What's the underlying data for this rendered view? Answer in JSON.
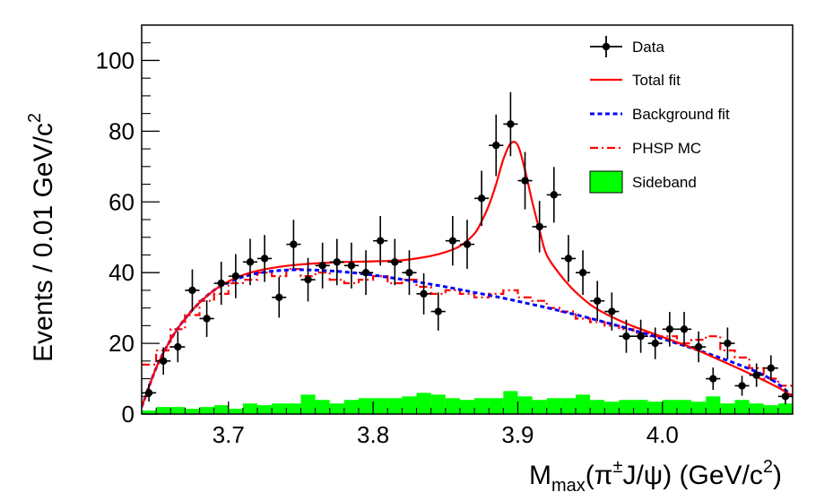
{
  "chart_data": {
    "type": "scatter",
    "title": "",
    "xlabel": {
      "main": "M",
      "sub": "max",
      "paren": "(π",
      "sup": "±",
      "rest": "J/ψ) (GeV/c",
      "sup2": "2",
      "close": ")"
    },
    "ylabel": {
      "main": "Events / 0.01 GeV/c",
      "sup": "2"
    },
    "xlim": [
      3.64,
      4.09
    ],
    "ylim": [
      0,
      110
    ],
    "xticks": [
      3.7,
      3.8,
      3.9,
      4.0
    ],
    "xtick_labels": [
      "3.7",
      "3.8",
      "3.9",
      "4.0"
    ],
    "yticks": [
      0,
      20,
      40,
      60,
      80,
      100
    ],
    "ytick_labels": [
      "0",
      "20",
      "40",
      "60",
      "80",
      "100"
    ],
    "legend": {
      "position": "top-right",
      "entries": [
        {
          "label": "Data",
          "style": "marker"
        },
        {
          "label": "Total fit",
          "style": "solid",
          "color": "#ff0000"
        },
        {
          "label": "Background fit",
          "style": "dashed",
          "color": "#0000ff"
        },
        {
          "label": "PHSP MC",
          "style": "dashdot",
          "color": "#ff0000"
        },
        {
          "label": "Sideband",
          "style": "fill",
          "color": "#00ff00"
        }
      ]
    },
    "series": [
      {
        "name": "Data",
        "type": "errorbar",
        "color": "#000000",
        "x": [
          3.645,
          3.655,
          3.665,
          3.675,
          3.685,
          3.695,
          3.705,
          3.715,
          3.725,
          3.735,
          3.745,
          3.755,
          3.765,
          3.775,
          3.785,
          3.795,
          3.805,
          3.815,
          3.825,
          3.835,
          3.845,
          3.855,
          3.865,
          3.875,
          3.885,
          3.895,
          3.905,
          3.915,
          3.925,
          3.935,
          3.945,
          3.955,
          3.965,
          3.975,
          3.985,
          3.995,
          4.005,
          4.015,
          4.025,
          4.035,
          4.045,
          4.055,
          4.065,
          4.075,
          4.085
        ],
        "y": [
          6,
          15,
          19,
          35,
          27,
          37,
          39,
          43,
          44,
          33,
          48,
          38,
          42,
          43,
          42,
          40,
          49,
          43,
          40,
          34,
          29,
          49,
          48,
          61,
          76,
          82,
          66,
          53,
          62,
          44,
          40,
          32,
          29,
          22,
          22,
          20,
          24,
          24,
          19,
          10,
          20,
          8,
          11,
          13,
          5
        ]
      },
      {
        "name": "Total fit",
        "type": "line",
        "color": "#ff0000",
        "x": [
          3.64,
          3.65,
          3.66,
          3.67,
          3.68,
          3.69,
          3.7,
          3.71,
          3.72,
          3.73,
          3.74,
          3.75,
          3.76,
          3.77,
          3.78,
          3.79,
          3.8,
          3.81,
          3.82,
          3.83,
          3.84,
          3.85,
          3.86,
          3.87,
          3.875,
          3.88,
          3.885,
          3.89,
          3.895,
          3.9,
          3.905,
          3.91,
          3.915,
          3.92,
          3.93,
          3.94,
          3.95,
          3.96,
          3.97,
          3.98,
          3.99,
          4.0,
          4.02,
          4.04,
          4.06,
          4.08,
          4.09
        ],
        "y": [
          2,
          13,
          21,
          27,
          31.5,
          35,
          37.5,
          39.3,
          40.5,
          41.3,
          41.9,
          42.3,
          42.6,
          42.8,
          43,
          43.1,
          43.2,
          43.3,
          43.5,
          44,
          44.7,
          45.8,
          47.5,
          51,
          54.5,
          59,
          65,
          72,
          76.5,
          76,
          69,
          60,
          52,
          45,
          39,
          34.5,
          31,
          28.5,
          26.5,
          24.8,
          23.3,
          21.8,
          18.8,
          15.2,
          11.5,
          7.5,
          5
        ]
      },
      {
        "name": "Background fit",
        "type": "line",
        "color": "#0000ff",
        "x": [
          3.64,
          3.65,
          3.66,
          3.67,
          3.68,
          3.69,
          3.7,
          3.71,
          3.72,
          3.73,
          3.74,
          3.75,
          3.76,
          3.77,
          3.78,
          3.79,
          3.8,
          3.81,
          3.82,
          3.83,
          3.84,
          3.85,
          3.86,
          3.87,
          3.88,
          3.89,
          3.9,
          3.91,
          3.92,
          3.93,
          3.94,
          3.95,
          3.96,
          3.97,
          3.98,
          3.99,
          4.0,
          4.01,
          4.02,
          4.03,
          4.04,
          4.05,
          4.06,
          4.07,
          4.08,
          4.09
        ],
        "y": [
          2,
          13,
          21,
          27,
          31.5,
          35,
          37.2,
          38.8,
          39.8,
          40.4,
          40.7,
          40.8,
          40.7,
          40.5,
          40.2,
          39.8,
          39.3,
          38.7,
          38.1,
          37.4,
          36.7,
          36,
          35.2,
          34.4,
          33.6,
          32.8,
          31.9,
          31,
          30.1,
          29.1,
          28.1,
          27.1,
          26,
          24.9,
          23.7,
          22.5,
          21.3,
          20,
          18.7,
          17.3,
          15.9,
          14.4,
          12.8,
          11,
          8.5,
          5
        ]
      },
      {
        "name": "PHSP MC",
        "type": "step",
        "color": "#ff0000",
        "x": [
          3.645,
          3.655,
          3.665,
          3.675,
          3.685,
          3.695,
          3.705,
          3.715,
          3.725,
          3.735,
          3.745,
          3.755,
          3.765,
          3.775,
          3.785,
          3.795,
          3.805,
          3.815,
          3.825,
          3.835,
          3.845,
          3.855,
          3.865,
          3.875,
          3.885,
          3.895,
          3.905,
          3.915,
          3.925,
          3.935,
          3.945,
          3.955,
          3.965,
          3.975,
          3.985,
          3.995,
          4.005,
          4.015,
          4.025,
          4.035,
          4.045,
          4.055,
          4.065,
          4.075,
          4.085
        ],
        "y": [
          14,
          18,
          24,
          28,
          32,
          34,
          37,
          38,
          40,
          39,
          41,
          39,
          40,
          38,
          37,
          38,
          39,
          37,
          38,
          36,
          34,
          35,
          34,
          33,
          34,
          35,
          33,
          32,
          30,
          29,
          27,
          26,
          25,
          24,
          23,
          22,
          22,
          20,
          21,
          22,
          18,
          16,
          13,
          10,
          8
        ]
      },
      {
        "name": "Sideband",
        "type": "histogram",
        "color": "#00ff00",
        "x": [
          3.645,
          3.655,
          3.665,
          3.675,
          3.685,
          3.695,
          3.705,
          3.715,
          3.725,
          3.735,
          3.745,
          3.755,
          3.765,
          3.775,
          3.785,
          3.795,
          3.805,
          3.815,
          3.825,
          3.835,
          3.845,
          3.855,
          3.865,
          3.875,
          3.885,
          3.895,
          3.905,
          3.915,
          3.925,
          3.935,
          3.945,
          3.955,
          3.965,
          3.975,
          3.985,
          3.995,
          4.005,
          4.015,
          4.025,
          4.035,
          4.045,
          4.055,
          4.065,
          4.075,
          4.085
        ],
        "y": [
          1,
          2,
          2,
          1.5,
          2,
          2.5,
          1.5,
          3,
          2.5,
          3,
          3,
          5.5,
          4,
          3,
          4,
          4.5,
          4.5,
          4.5,
          5,
          6,
          5.5,
          4.5,
          4,
          4.5,
          4.5,
          6.5,
          5,
          4,
          4.5,
          4.5,
          5.5,
          4,
          3.5,
          4,
          4,
          3.5,
          4,
          4,
          3.5,
          5,
          3,
          4,
          3,
          2.5,
          3
        ]
      }
    ]
  }
}
